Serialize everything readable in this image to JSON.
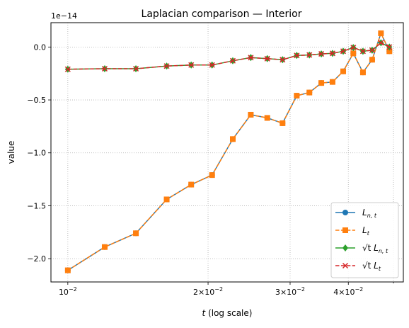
{
  "chart_data": {
    "type": "line",
    "title": "Laplacian comparison — Interior",
    "xlabel": "t (log scale)",
    "xlabel_italic_part": "t",
    "xlabel_rest": " (log scale)",
    "ylabel": "value",
    "y_multiplier": "1e−14",
    "x_scale": "log",
    "grid": true,
    "legend_position": "lower-right",
    "xlim": [
      0.0092,
      0.0525
    ],
    "ylim": [
      -2.22,
      0.23
    ],
    "x_ticks": [
      {
        "value": 0.01,
        "base": "10",
        "exp": "−2",
        "mant": ""
      },
      {
        "value": 0.02,
        "base": "10",
        "exp": "−2",
        "mant": "2×"
      },
      {
        "value": 0.03,
        "base": "10",
        "exp": "−2",
        "mant": "3×"
      },
      {
        "value": 0.04,
        "base": "10",
        "exp": "−2",
        "mant": "4×"
      }
    ],
    "y_ticks": [
      {
        "value": 0.0,
        "label": "0.0"
      },
      {
        "value": -0.5,
        "label": "−0.5"
      },
      {
        "value": -1.0,
        "label": "−1.0"
      },
      {
        "value": -1.5,
        "label": "−1.5"
      },
      {
        "value": -2.0,
        "label": "−2.0"
      }
    ],
    "x": [
      0.01,
      0.012,
      0.014,
      0.0163,
      0.0184,
      0.0204,
      0.0226,
      0.0247,
      0.0268,
      0.0289,
      0.031,
      0.033,
      0.035,
      0.037,
      0.039,
      0.041,
      0.043,
      0.045,
      0.047,
      0.049
    ],
    "series": [
      {
        "name": "L_{n,t}",
        "color": "#1f77b4",
        "marker": "circle",
        "dash": "solid",
        "values": [
          -2.11,
          -1.89,
          -1.76,
          -1.44,
          -1.3,
          -1.21,
          -0.87,
          -0.64,
          -0.67,
          -0.72,
          -0.46,
          -0.43,
          -0.34,
          -0.33,
          -0.23,
          -0.06,
          -0.24,
          -0.12,
          0.13,
          -0.04
        ]
      },
      {
        "name": "L_t",
        "color": "#ff7f0e",
        "marker": "square",
        "dash": "dashed",
        "values": [
          -2.11,
          -1.89,
          -1.76,
          -1.44,
          -1.3,
          -1.21,
          -0.87,
          -0.64,
          -0.67,
          -0.72,
          -0.46,
          -0.43,
          -0.34,
          -0.33,
          -0.23,
          -0.06,
          -0.24,
          -0.12,
          0.13,
          -0.04
        ]
      },
      {
        "name": "√t L_{n,t}",
        "color": "#2ca02c",
        "marker": "diamond",
        "dash": "solid",
        "values": [
          -0.21,
          -0.205,
          -0.205,
          -0.18,
          -0.17,
          -0.17,
          -0.13,
          -0.1,
          -0.11,
          -0.12,
          -0.08,
          -0.075,
          -0.065,
          -0.06,
          -0.04,
          -0.005,
          -0.04,
          -0.03,
          0.04,
          0.0
        ]
      },
      {
        "name": "√t L_t",
        "color": "#d62728",
        "marker": "x",
        "dash": "dashed",
        "values": [
          -0.21,
          -0.205,
          -0.205,
          -0.18,
          -0.17,
          -0.17,
          -0.13,
          -0.1,
          -0.11,
          -0.12,
          -0.08,
          -0.075,
          -0.065,
          -0.06,
          -0.04,
          -0.005,
          -0.04,
          -0.03,
          0.04,
          0.0
        ]
      }
    ],
    "legend": [
      {
        "pre": "L",
        "sub": "n, t"
      },
      {
        "pre": "L",
        "sub": "t"
      },
      {
        "sqrt": "√t",
        "pre": " L",
        "sub": "n, t"
      },
      {
        "sqrt": "√t",
        "pre": " L",
        "sub": "t"
      }
    ]
  }
}
